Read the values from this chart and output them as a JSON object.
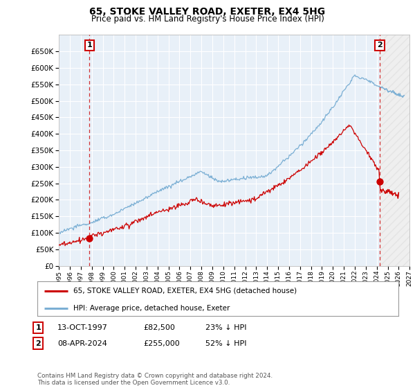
{
  "title": "65, STOKE VALLEY ROAD, EXETER, EX4 5HG",
  "subtitle": "Price paid vs. HM Land Registry's House Price Index (HPI)",
  "legend_line1": "65, STOKE VALLEY ROAD, EXETER, EX4 5HG (detached house)",
  "legend_line2": "HPI: Average price, detached house, Exeter",
  "annotation1_label": "1",
  "annotation1_date": "13-OCT-1997",
  "annotation1_price": "£82,500",
  "annotation1_hpi": "23% ↓ HPI",
  "annotation2_label": "2",
  "annotation2_date": "08-APR-2024",
  "annotation2_price": "£255,000",
  "annotation2_hpi": "52% ↓ HPI",
  "footer": "Contains HM Land Registry data © Crown copyright and database right 2024.\nThis data is licensed under the Open Government Licence v3.0.",
  "hpi_color": "#7bafd4",
  "price_color": "#cc0000",
  "annotation_color": "#cc0000",
  "bg_color": "#ffffff",
  "plot_bg_color": "#e8f0f8",
  "grid_color": "#ffffff",
  "ylim_min": 0,
  "ylim_max": 700000,
  "xstart_year": 1995,
  "xend_year": 2027,
  "sale1_year": 1997.79,
  "sale1_price": 82500,
  "sale2_year": 2024.27,
  "sale2_price": 255000
}
